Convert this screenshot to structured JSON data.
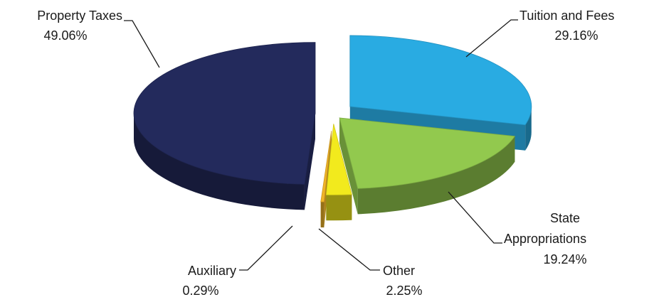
{
  "chart_data": {
    "type": "pie",
    "style": "3d-exploded",
    "title": "",
    "slices": [
      {
        "label": "Property Taxes",
        "value": 49.06,
        "value_label": "49.06%",
        "color": "#232a5c"
      },
      {
        "label": "Tuition and Fees",
        "value": 29.16,
        "value_label": "29.16%",
        "color": "#29abe2"
      },
      {
        "label": "State Appropriations",
        "value": 19.24,
        "value_label": "19.24%",
        "color": "#92c94e"
      },
      {
        "label": "Other",
        "value": 2.25,
        "value_label": "2.25%",
        "color": "#f2ea1d"
      },
      {
        "label": "Auxiliary",
        "value": 0.29,
        "value_label": "0.29%",
        "color": "#f0b428"
      }
    ]
  }
}
